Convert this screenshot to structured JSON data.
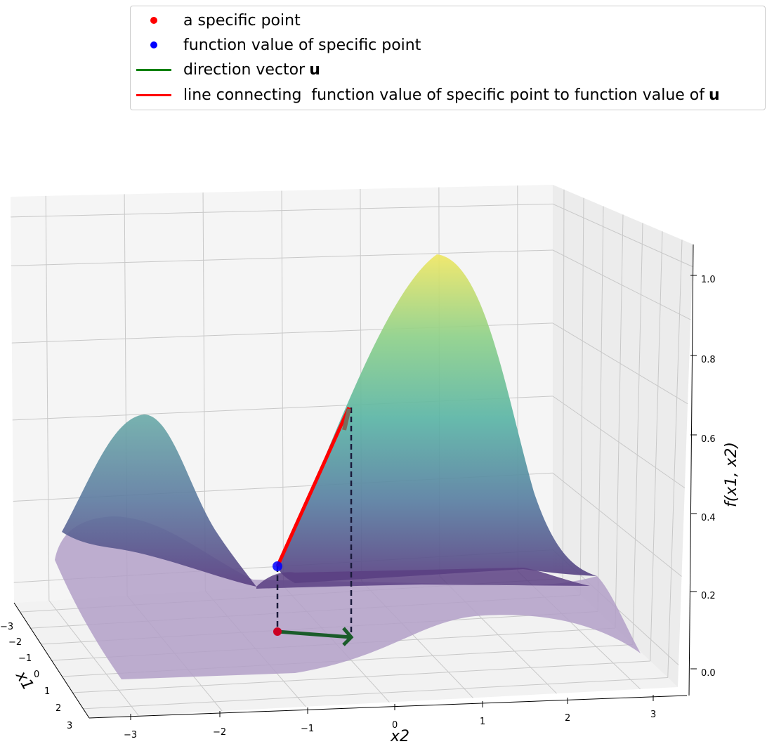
{
  "chart_data": {
    "type": "surface",
    "legend": {
      "placement": "top",
      "entries": [
        {
          "label": "a specific point",
          "marker": "dot",
          "color": "#ff0000"
        },
        {
          "label": "function value of specific point",
          "marker": "dot",
          "color": "#0000ff"
        },
        {
          "label": "direction vector",
          "bold_suffix": "u",
          "marker": "line",
          "color": "#008000"
        },
        {
          "label": "line connecting  function value of specific point to function value of",
          "bold_suffix": "u",
          "marker": "line",
          "color": "#ff0000"
        }
      ]
    },
    "xlabel": "x2",
    "ylabel": "x1",
    "zlabel": "f(x1, x2)",
    "x2_ticks": [
      "−3",
      "−2",
      "−1",
      "0",
      "1",
      "2",
      "3"
    ],
    "x1_ticks": [
      "−3",
      "−2",
      "−1",
      "0",
      "1",
      "2",
      "3"
    ],
    "z_ticks": [
      "0.0",
      "0.2",
      "0.4",
      "0.6",
      "0.8",
      "1.0"
    ],
    "xlim": [
      -3,
      3
    ],
    "ylim": [
      -3,
      3
    ],
    "zlim": [
      0,
      1.05
    ],
    "colormap": "viridis",
    "grid": true,
    "colors": {
      "point": "#cc0022",
      "value_point": "#0000ff",
      "direction": "#1a5c2a",
      "connector": "#ff0000",
      "dashed": "#1a1a3a"
    }
  }
}
